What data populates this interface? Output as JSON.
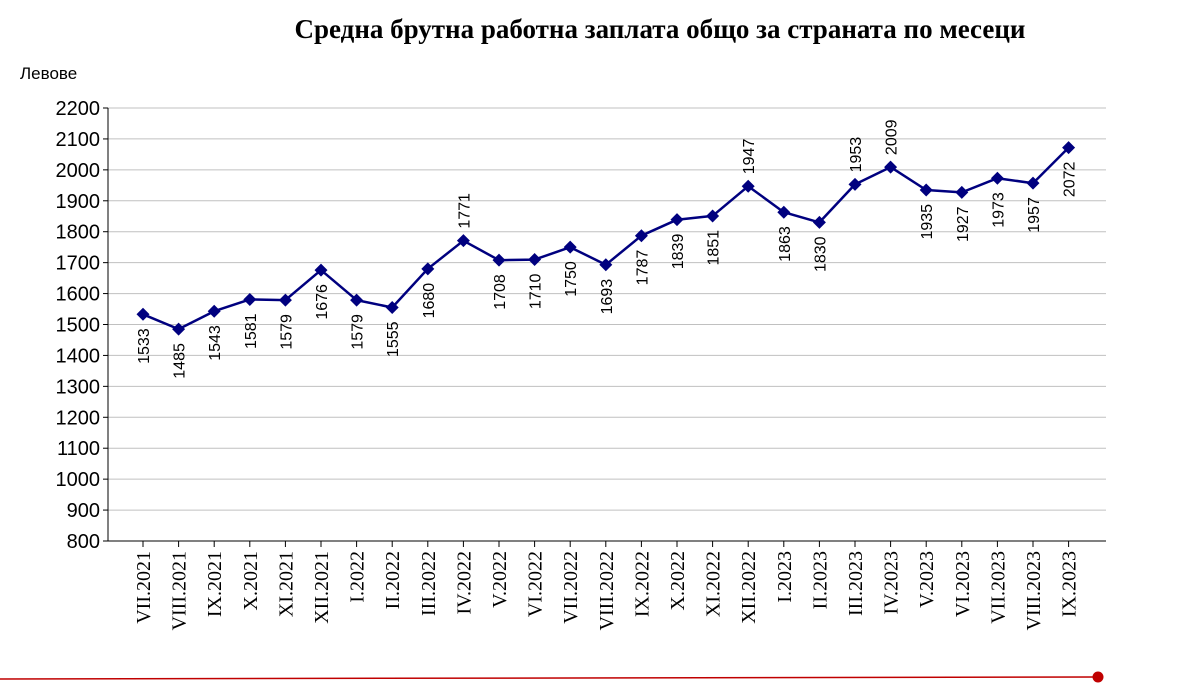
{
  "chart_data": {
    "type": "line",
    "title": "Средна брутна работна заплата общо за страната по месеци",
    "ylabel": "Левове",
    "xlabel": "",
    "ylim": [
      800,
      2200
    ],
    "yticks": [
      800,
      900,
      1000,
      1100,
      1200,
      1300,
      1400,
      1500,
      1600,
      1700,
      1800,
      1900,
      2000,
      2100,
      2200
    ],
    "grid": true,
    "categories": [
      "VII.2021",
      "VIII.2021",
      "IX.2021",
      "X.2021",
      "XI.2021",
      "XII.2021",
      "I.2022",
      "II.2022",
      "III.2022",
      "IV.2022",
      "V.2022",
      "VI.2022",
      "VII.2022",
      "VIII.2022",
      "IX.2022",
      "X.2022",
      "XI.2022",
      "XII.2022",
      "I.2023",
      "II.2023",
      "III.2023",
      "IV.2023",
      "V.2023",
      "VI.2023",
      "VII.2023",
      "VIII.2023",
      "IX.2023"
    ],
    "series": [
      {
        "values": [
          1533,
          1485,
          1543,
          1581,
          1579,
          1676,
          1579,
          1555,
          1680,
          1771,
          1708,
          1710,
          1750,
          1693,
          1787,
          1839,
          1851,
          1947,
          1863,
          1830,
          1953,
          2009,
          1935,
          1927,
          1973,
          1957,
          2072
        ],
        "color": "#00007f"
      }
    ],
    "data_label_positions": [
      "below",
      "below",
      "below",
      "below",
      "below",
      "below",
      "below",
      "below",
      "below",
      "above",
      "below",
      "below",
      "below",
      "below",
      "below",
      "below",
      "below",
      "above",
      "below",
      "below",
      "above",
      "above",
      "below",
      "below",
      "below",
      "below",
      "below"
    ]
  },
  "colors": {
    "line": "#00007f",
    "grid": "#c0c0c0",
    "axis": "#000000",
    "footer_line": "#c00000"
  }
}
